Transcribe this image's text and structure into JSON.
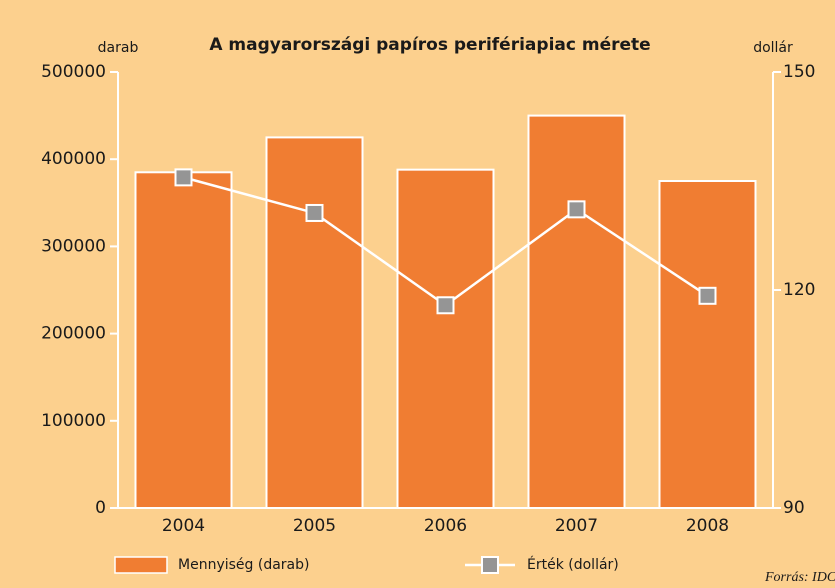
{
  "chart_data": {
    "type": "bar+line",
    "title": "A magyarországi papíros perifériapiac mérete",
    "ylabel": "darab",
    "y2label": "dollár",
    "source": "Forrás: IDC",
    "categories": [
      "2004",
      "2005",
      "2006",
      "2007",
      "2008"
    ],
    "series": [
      {
        "name": "Mennyiség (darab)",
        "type": "bar",
        "color": "#f07d32",
        "values": [
          385000,
          425000,
          388000,
          450000,
          375000
        ]
      },
      {
        "name": "Érték (dollár)",
        "type": "line",
        "axis": "y2",
        "color": "#ffffff",
        "marker_color": "#959595",
        "values": [
          135.5,
          130.6,
          117.9,
          131.1,
          119.2
        ]
      }
    ],
    "ylim": [
      0,
      500000
    ],
    "yticks": [
      0,
      100000,
      200000,
      300000,
      400000,
      500000
    ],
    "y2lim": [
      90,
      150
    ],
    "y2ticks": [
      90,
      120,
      150
    ]
  }
}
